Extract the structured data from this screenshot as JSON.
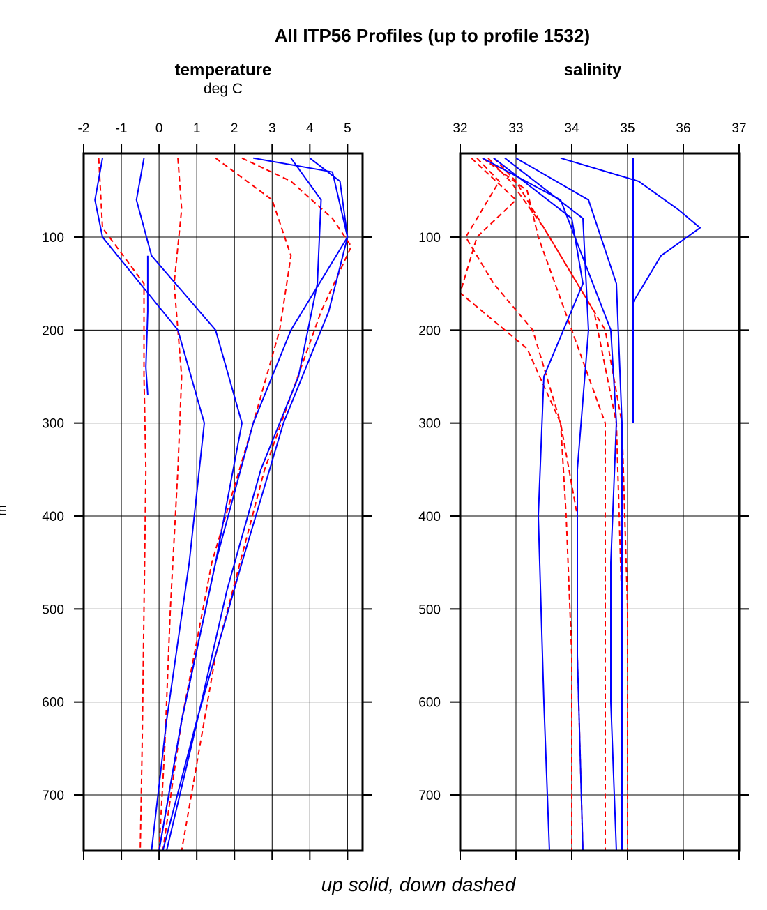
{
  "page_title": "All ITP56 Profiles (up to profile 1532)",
  "caption": "up solid, down dashed",
  "y_axis_label_fragment": "m",
  "colors": {
    "up": "#0000ff",
    "down": "#ff0000",
    "axis": "#000000"
  },
  "chart_data": [
    {
      "type": "line",
      "name": "temperature",
      "title": "temperature",
      "units": "deg C",
      "xlim": [
        -2,
        5.4
      ],
      "ylim": [
        760,
        10
      ],
      "y_inverted": true,
      "x_ticks": [
        "-2",
        "-1",
        "0",
        "1",
        "2",
        "3",
        "4",
        "5"
      ],
      "x_tick_values": [
        -2,
        -1,
        0,
        1,
        2,
        3,
        4,
        5
      ],
      "y_ticks": [
        "100",
        "200",
        "300",
        "400",
        "500",
        "600",
        "700"
      ],
      "y_tick_values": [
        100,
        200,
        300,
        400,
        500,
        600,
        700
      ],
      "grid": true,
      "series": [
        {
          "direction": "down",
          "style": "dashed",
          "x": [
            -1.6,
            -1.5,
            -0.4,
            -0.4,
            -0.35,
            -0.4,
            -0.45,
            -0.5
          ],
          "y": [
            15,
            90,
            150,
            250,
            350,
            500,
            650,
            760
          ]
        },
        {
          "direction": "down",
          "style": "dashed",
          "x": [
            0.5,
            0.6,
            0.4,
            0.6,
            0.5,
            0.3,
            0.15,
            0.0
          ],
          "y": [
            15,
            70,
            150,
            250,
            350,
            500,
            650,
            760
          ]
        },
        {
          "direction": "down",
          "style": "dashed",
          "x": [
            2.2,
            3.5,
            4.6,
            5.1,
            4.3,
            2.8,
            1.5,
            0.6
          ],
          "y": [
            15,
            40,
            80,
            110,
            180,
            350,
            550,
            760
          ]
        },
        {
          "direction": "down",
          "style": "dashed",
          "x": [
            1.5,
            3.0,
            3.5,
            3.2,
            2.5,
            1.4,
            0.6,
            0.1
          ],
          "y": [
            15,
            60,
            120,
            200,
            300,
            450,
            620,
            760
          ]
        },
        {
          "direction": "up",
          "style": "solid",
          "x": [
            -1.5,
            -1.7,
            -1.5,
            0.5,
            1.2,
            0.8,
            0.2,
            -0.2
          ],
          "y": [
            15,
            60,
            100,
            200,
            300,
            450,
            620,
            760
          ]
        },
        {
          "direction": "up",
          "style": "solid",
          "x": [
            -0.4,
            -0.6,
            -0.2,
            1.5,
            2.2,
            1.5,
            0.6,
            0.0
          ],
          "y": [
            15,
            60,
            120,
            200,
            300,
            450,
            620,
            760
          ]
        },
        {
          "direction": "up",
          "style": "solid",
          "x": [
            4.0,
            4.8,
            5.0,
            4.5,
            3.3,
            2.2,
            1.0,
            0.1
          ],
          "y": [
            15,
            40,
            100,
            180,
            300,
            450,
            620,
            760
          ]
        },
        {
          "direction": "up",
          "style": "solid",
          "x": [
            2.5,
            4.6,
            5.0,
            3.5,
            2.5,
            1.5,
            0.6,
            0.0
          ],
          "y": [
            15,
            30,
            100,
            200,
            300,
            450,
            620,
            760
          ]
        },
        {
          "direction": "up",
          "style": "solid",
          "x": [
            3.5,
            4.3,
            4.2,
            3.7,
            2.7,
            1.8,
            0.9,
            0.2
          ],
          "y": [
            15,
            60,
            150,
            250,
            350,
            480,
            640,
            760
          ]
        },
        {
          "direction": "up",
          "style": "solid",
          "x": [
            -0.3,
            -0.3,
            -0.35,
            -0.3
          ],
          "y": [
            120,
            180,
            240,
            270
          ]
        }
      ]
    },
    {
      "type": "line",
      "name": "salinity",
      "title": "salinity",
      "units": "",
      "xlim": [
        32,
        37
      ],
      "ylim": [
        760,
        10
      ],
      "y_inverted": true,
      "x_ticks": [
        "32",
        "33",
        "34",
        "35",
        "36",
        "37"
      ],
      "x_tick_values": [
        32,
        33,
        34,
        35,
        36,
        37
      ],
      "y_ticks": [
        "100",
        "200",
        "300",
        "400",
        "500",
        "600",
        "700"
      ],
      "y_tick_values": [
        100,
        200,
        300,
        400,
        500,
        600,
        700
      ],
      "grid": true,
      "series": [
        {
          "direction": "down",
          "style": "dashed",
          "x": [
            32.5,
            32.9,
            33.5,
            34.4,
            34.6,
            34.8,
            34.9,
            34.9
          ],
          "y": [
            15,
            40,
            90,
            180,
            240,
            300,
            500,
            760
          ]
        },
        {
          "direction": "down",
          "style": "dashed",
          "x": [
            32.6,
            33.0,
            33.6,
            34.6,
            34.9,
            35.0,
            35.0
          ],
          "y": [
            15,
            40,
            100,
            200,
            300,
            500,
            760
          ]
        },
        {
          "direction": "down",
          "style": "dashed",
          "x": [
            32.3,
            32.7,
            32.1,
            32.6,
            33.3,
            33.8,
            33.9,
            34.0,
            34.0
          ],
          "y": [
            15,
            40,
            100,
            150,
            200,
            300,
            400,
            550,
            760
          ]
        },
        {
          "direction": "down",
          "style": "dashed",
          "x": [
            32.2,
            33.0,
            32.3,
            32.0,
            33.2,
            33.8,
            34.1,
            34.1,
            34.2
          ],
          "y": [
            15,
            60,
            100,
            160,
            220,
            300,
            400,
            550,
            760
          ]
        },
        {
          "direction": "down",
          "style": "dashed",
          "x": [
            32.4,
            33.2,
            33.4,
            34.0,
            34.6,
            34.6,
            34.6,
            34.6
          ],
          "y": [
            15,
            50,
            100,
            200,
            300,
            450,
            600,
            760
          ]
        },
        {
          "direction": "up",
          "style": "solid",
          "x": [
            33.0,
            34.3,
            34.8,
            34.9,
            34.9
          ],
          "y": [
            15,
            60,
            150,
            300,
            760
          ]
        },
        {
          "direction": "up",
          "style": "solid",
          "x": [
            33.8,
            35.2,
            35.9,
            36.3,
            35.6,
            35.3,
            35.1
          ],
          "y": [
            15,
            40,
            70,
            90,
            120,
            150,
            170
          ]
        },
        {
          "direction": "up",
          "style": "solid",
          "x": [
            32.4,
            33.8,
            34.7,
            34.8,
            34.7,
            34.7,
            34.8
          ],
          "y": [
            15,
            60,
            200,
            300,
            450,
            600,
            760
          ]
        },
        {
          "direction": "up",
          "style": "solid",
          "x": [
            32.6,
            34.0,
            34.2,
            33.5,
            33.4,
            33.5,
            33.6
          ],
          "y": [
            15,
            80,
            150,
            250,
            400,
            600,
            760
          ]
        },
        {
          "direction": "up",
          "style": "solid",
          "x": [
            32.8,
            34.2,
            34.3,
            34.1,
            34.1,
            34.2
          ],
          "y": [
            15,
            80,
            200,
            350,
            550,
            760
          ]
        },
        {
          "direction": "up",
          "style": "solid",
          "x": [
            35.1,
            35.1,
            35.1
          ],
          "y": [
            15,
            150,
            300
          ]
        }
      ]
    }
  ]
}
